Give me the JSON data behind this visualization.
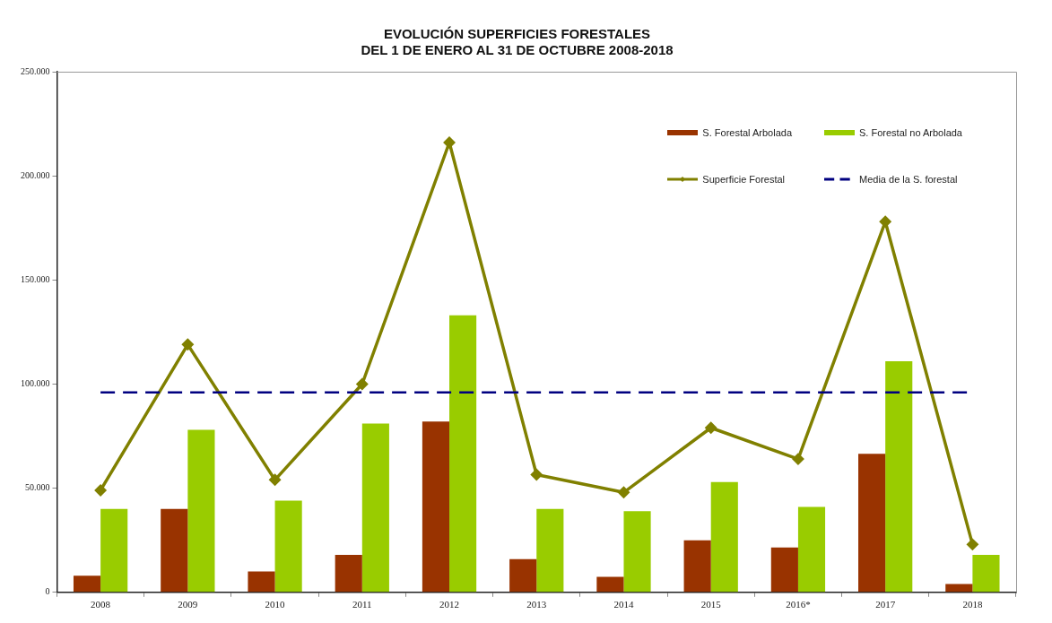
{
  "chart_data": {
    "type": "bar",
    "title": "EVOLUCIÓN SUPERFICIES FORESTALES\nDEL 1 DE ENERO AL 31 DE OCTUBRE 2008-2018",
    "categories": [
      "2008",
      "2009",
      "2010",
      "2011",
      "2012",
      "2013",
      "2014",
      "2015",
      "2016*",
      "2017",
      "2018"
    ],
    "series": [
      {
        "name": "S. Forestal Arbolada",
        "color": "#993300",
        "values": [
          8000,
          40000,
          10000,
          18000,
          82000,
          16000,
          7500,
          25000,
          21500,
          66500,
          4000
        ]
      },
      {
        "name": "S. Forestal no Arbolada",
        "color": "#99cc00",
        "values": [
          40000,
          78000,
          44000,
          81000,
          133000,
          40000,
          39000,
          53000,
          41000,
          111000,
          18000
        ]
      },
      {
        "name": "Superficie Forestal",
        "type": "line",
        "color": "#808000",
        "values": [
          49000,
          119000,
          54000,
          100000,
          216000,
          56500,
          48000,
          79000,
          64000,
          178000,
          23000
        ]
      }
    ],
    "ref_lines": [
      {
        "axis": "y",
        "value": 96000,
        "label": "Media de la S. forestal",
        "color": "#000080",
        "line_style": "dashed"
      }
    ],
    "ylim": [
      0,
      250000
    ],
    "yticks": [
      {
        "value": 0,
        "label": "0"
      },
      {
        "value": 50000,
        "label": "50.000"
      },
      {
        "value": 100000,
        "label": "100.000"
      },
      {
        "value": 150000,
        "label": "150.000"
      },
      {
        "value": 200000,
        "label": "200.000"
      },
      {
        "value": 250000,
        "label": "250.000"
      }
    ],
    "grid": false,
    "legend": "top right",
    "marker": "diamond"
  }
}
